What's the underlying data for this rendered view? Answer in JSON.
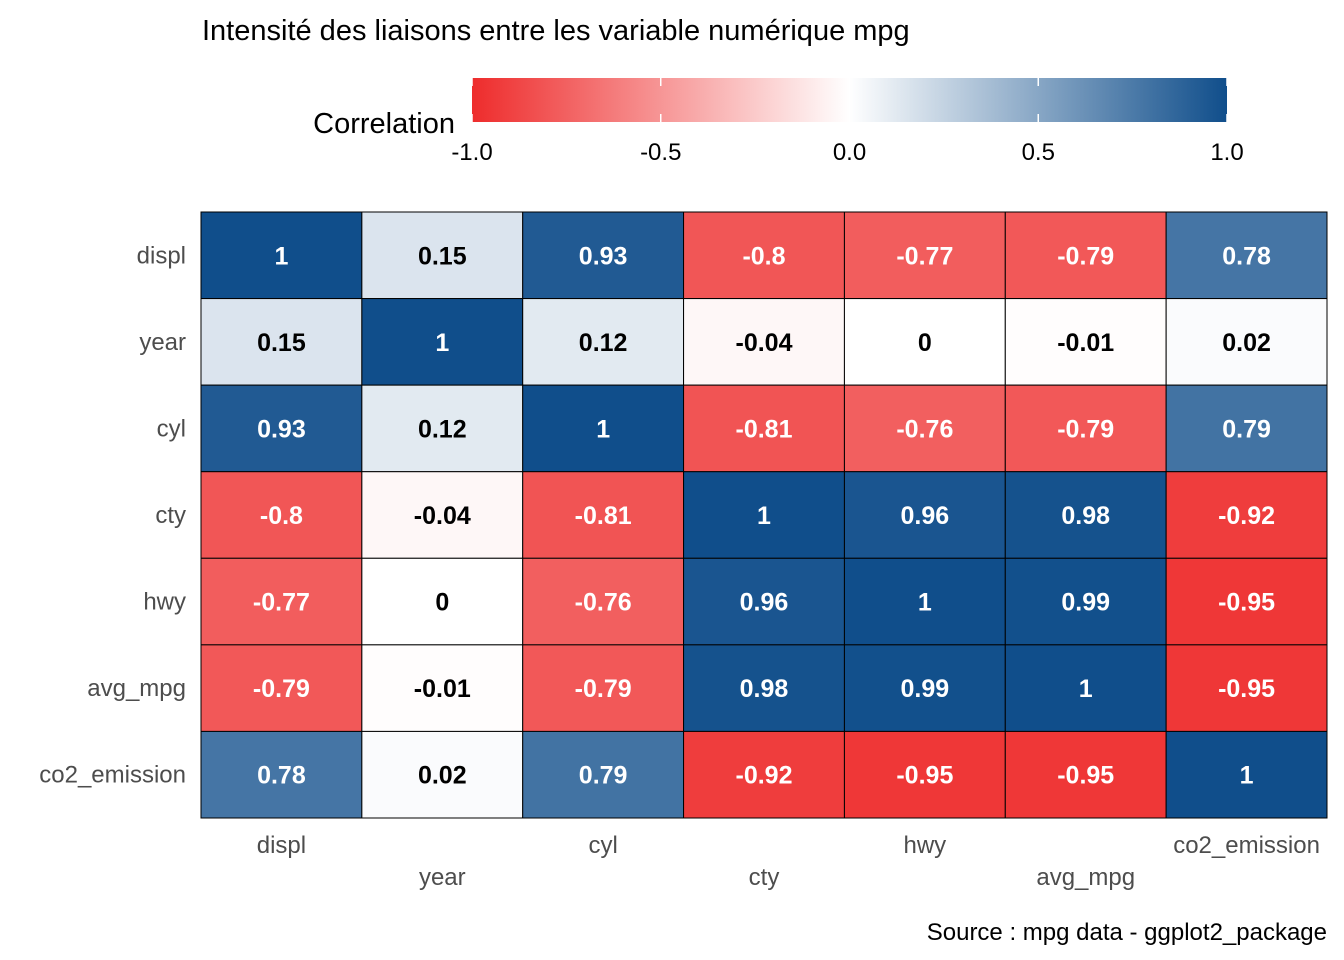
{
  "chart_data": {
    "type": "heatmap",
    "title": "Intensité des liaisons entre les variable numérique mpg",
    "caption": "Source : mpg data - ggplot2_package",
    "legend": {
      "title": "Correlation",
      "placement": "top",
      "range": [
        -1,
        1
      ],
      "ticks": [
        "-1.0",
        "-0.5",
        "0.0",
        "0.5",
        "1.0"
      ],
      "colors": {
        "low": "#EE2C2C",
        "mid": "#FFFFFF",
        "high": "#104E8B"
      }
    },
    "variables": [
      "displ",
      "year",
      "cyl",
      "cty",
      "hwy",
      "avg_mpg",
      "co2_emission"
    ],
    "matrix": [
      [
        1,
        0.15,
        0.93,
        -0.8,
        -0.77,
        -0.79,
        0.78
      ],
      [
        0.15,
        1,
        0.12,
        -0.04,
        0,
        -0.01,
        0.02
      ],
      [
        0.93,
        0.12,
        1,
        -0.81,
        -0.76,
        -0.79,
        0.79
      ],
      [
        -0.8,
        -0.04,
        -0.81,
        1,
        0.96,
        0.98,
        -0.92
      ],
      [
        -0.77,
        0,
        -0.76,
        0.96,
        1,
        0.99,
        -0.95
      ],
      [
        -0.79,
        -0.01,
        -0.79,
        0.98,
        0.99,
        1,
        -0.95
      ],
      [
        0.78,
        0.02,
        0.79,
        -0.92,
        -0.95,
        -0.95,
        1
      ]
    ],
    "grid": false
  }
}
